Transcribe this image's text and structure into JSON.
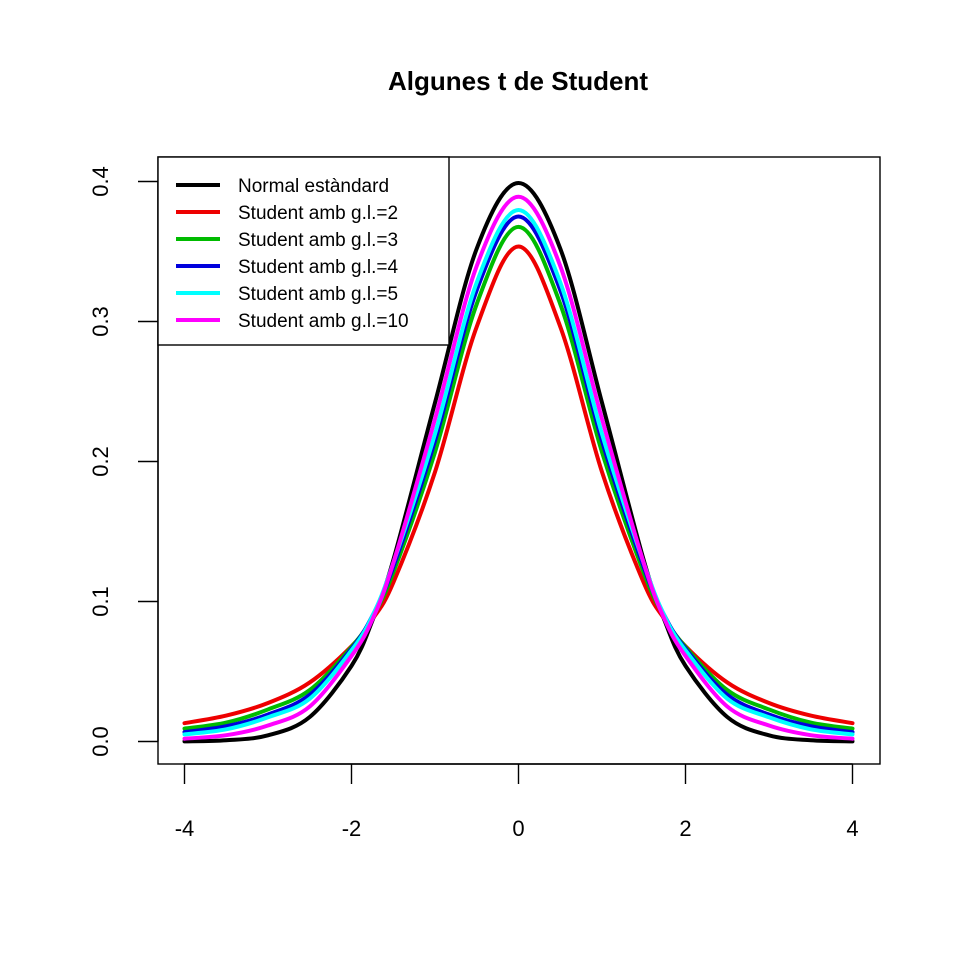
{
  "chart_data": {
    "type": "line",
    "title": "Algunes t de Student",
    "xlabel": "",
    "ylabel": "",
    "xlim": [
      -4,
      4
    ],
    "ylim": [
      0,
      0.4
    ],
    "x_ticks": [
      "-4",
      "-2",
      "0",
      "2",
      "4"
    ],
    "y_ticks": [
      "0.0",
      "0.1",
      "0.2",
      "0.3",
      "0.4"
    ],
    "legend_position": "top-left",
    "grid": false,
    "x": [
      -4,
      -3.5,
      -3,
      -2.5,
      -2,
      -1.75,
      -1.5,
      -1,
      -0.5,
      0,
      0.5,
      1,
      1.5,
      1.75,
      2,
      2.5,
      3,
      3.5,
      4
    ],
    "series": [
      {
        "name": "Normal estàndard",
        "color": "#000000",
        "values": [
          0.0001,
          0.0009,
          0.0044,
          0.0175,
          0.054,
          0.0863,
          0.1295,
          0.242,
          0.3521,
          0.3989,
          0.3521,
          0.242,
          0.1295,
          0.0863,
          0.054,
          0.0175,
          0.0044,
          0.0009,
          0.0001
        ]
      },
      {
        "name": "Student amb g.l.=2",
        "color": "#ee0000",
        "values": [
          0.0131,
          0.0185,
          0.0275,
          0.0422,
          0.068,
          0.0873,
          0.1134,
          0.1925,
          0.2963,
          0.3536,
          0.2963,
          0.1925,
          0.1134,
          0.0873,
          0.068,
          0.0422,
          0.0275,
          0.0185,
          0.0131
        ]
      },
      {
        "name": "Student amb g.l.=3",
        "color": "#00bb00",
        "values": [
          0.0092,
          0.0135,
          0.0229,
          0.0368,
          0.0675,
          0.0887,
          0.1206,
          0.2067,
          0.3125,
          0.3676,
          0.3125,
          0.2067,
          0.1206,
          0.0887,
          0.0675,
          0.0368,
          0.0229,
          0.0135,
          0.0092
        ]
      },
      {
        "name": "Student amb g.l.=4",
        "color": "#0000dd",
        "values": [
          0.0067,
          0.0109,
          0.0193,
          0.0334,
          0.0663,
          0.0897,
          0.1245,
          0.2147,
          0.3224,
          0.375,
          0.3224,
          0.2147,
          0.1245,
          0.0897,
          0.0663,
          0.0334,
          0.0193,
          0.0109,
          0.0067
        ]
      },
      {
        "name": "Student amb g.l.=5",
        "color": "#00ffff",
        "values": [
          0.0051,
          0.0087,
          0.0173,
          0.0306,
          0.0651,
          0.0895,
          0.1274,
          0.2197,
          0.3279,
          0.3796,
          0.3279,
          0.2197,
          0.1274,
          0.0895,
          0.0651,
          0.0306,
          0.0173,
          0.0087,
          0.0051
        ]
      },
      {
        "name": "Student amb g.l.=10",
        "color": "#ff00ff",
        "values": [
          0.002,
          0.0045,
          0.0114,
          0.025,
          0.0611,
          0.0872,
          0.1274,
          0.2304,
          0.3397,
          0.3891,
          0.3397,
          0.2304,
          0.1274,
          0.0872,
          0.0611,
          0.025,
          0.0114,
          0.0045,
          0.002
        ]
      }
    ]
  }
}
